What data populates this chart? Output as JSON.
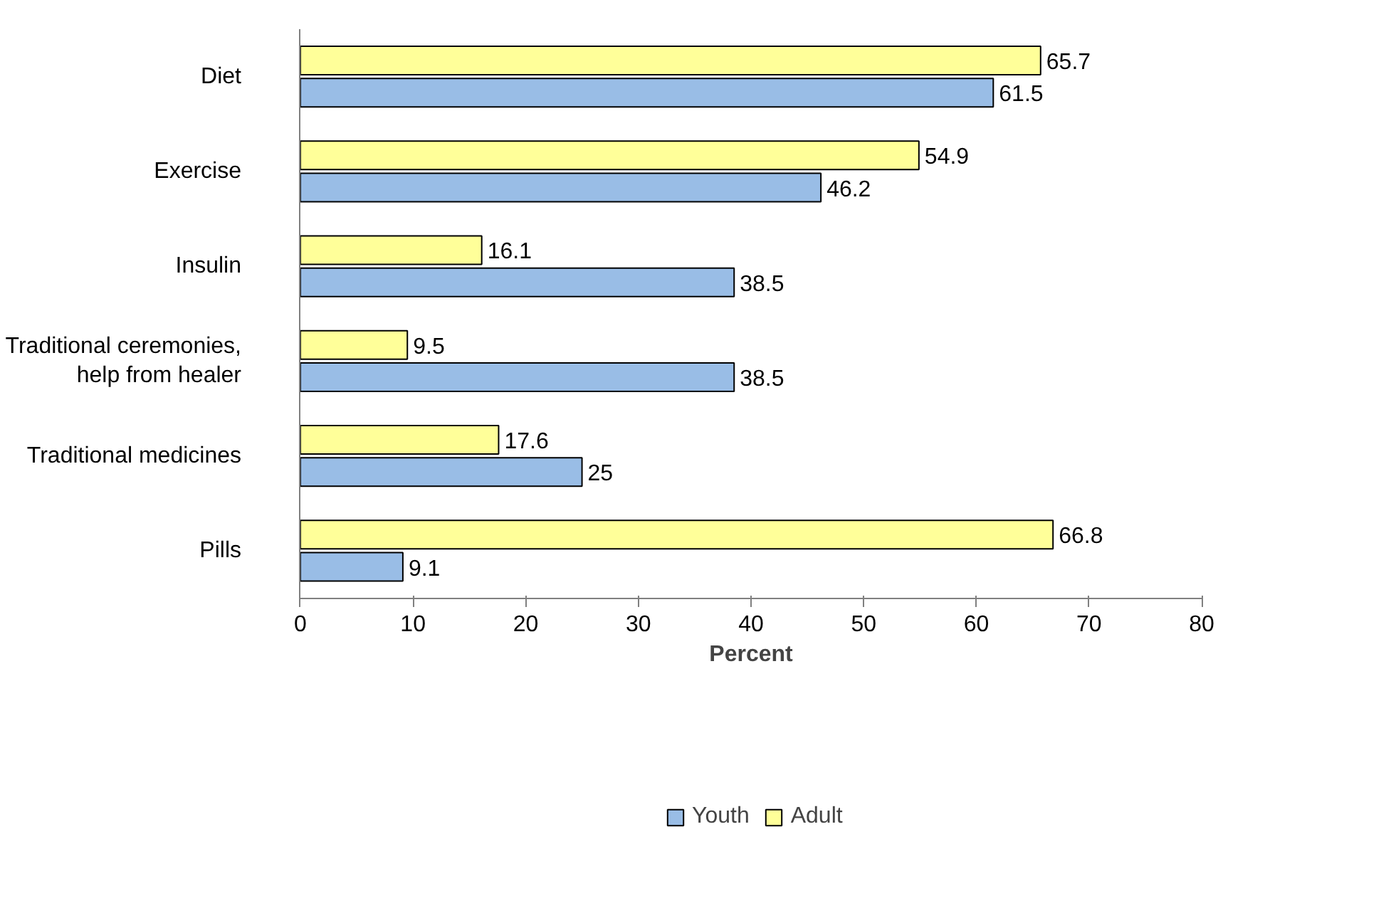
{
  "chart_data": {
    "type": "bar",
    "orientation": "horizontal",
    "xlabel": "Percent",
    "categories": [
      "Diet",
      "Exercise",
      "Insulin",
      "Traditional ceremonies,\nhelp from healer",
      "Traditional medicines",
      "Pills"
    ],
    "series": [
      {
        "name": "Youth",
        "color": "#99bde6",
        "values": [
          61.5,
          46.2,
          38.5,
          38.5,
          25,
          9.1
        ]
      },
      {
        "name": "Adult",
        "color": "#ffff99",
        "values": [
          65.7,
          54.9,
          16.1,
          9.5,
          17.6,
          66.8
        ]
      }
    ],
    "xlim": [
      0,
      80
    ],
    "xticks": [
      0,
      10,
      20,
      30,
      40,
      50,
      60,
      70,
      80
    ],
    "data_labels": true,
    "legend": "bottom",
    "grid": false
  }
}
